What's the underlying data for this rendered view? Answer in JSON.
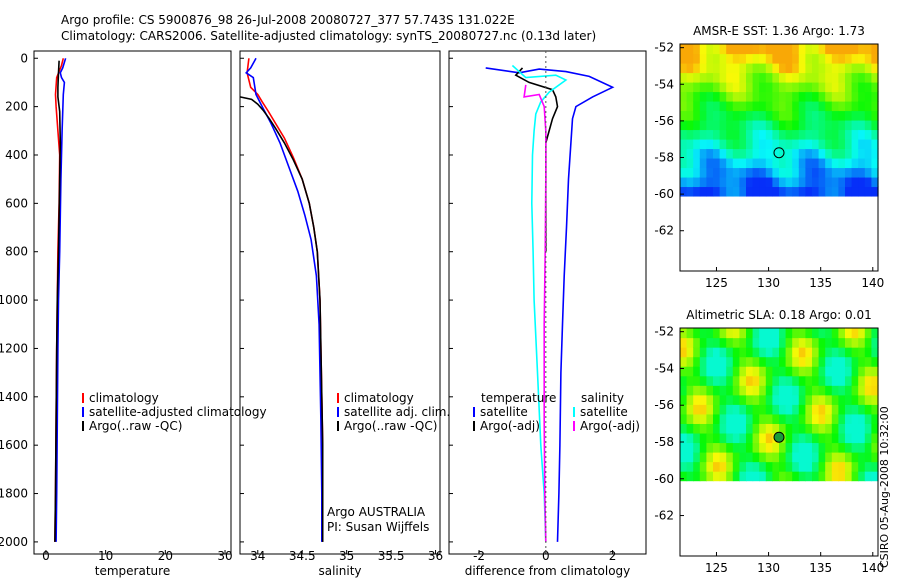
{
  "figure": {
    "title_line1": "Argo profile: CS 5900876_98 26-Jul-2008 20080727_377 57.743S 131.022E",
    "title_line2": "Climatology: CARS2006. Satellite-adjusted climatology: synTS_20080727.nc (0.13d later)",
    "watermark": "CSIRO 05-Aug-2008 10:32:00"
  },
  "colors": {
    "climatology": "#ff0000",
    "satellite": "#0000ff",
    "argo": "#000000",
    "salinity_satellite": "#00ffff",
    "salinity_argo": "#ff00ff"
  },
  "chart_data": [
    {
      "type": "line",
      "name": "temperature",
      "xlabel": "temperature",
      "ylabel": "",
      "xlim": [
        -2,
        31
      ],
      "ylim": [
        2050,
        -30
      ],
      "xticks": [
        0,
        10,
        20,
        30
      ],
      "yticks": [
        0,
        200,
        400,
        600,
        800,
        1000,
        1200,
        1400,
        1600,
        1800,
        2000
      ],
      "legend": [
        "climatology",
        "satellite-adjusted climatology",
        "Argo(..raw -QC)"
      ],
      "series": [
        {
          "name": "climatology",
          "color": "#ff0000",
          "x": [
            2.9,
            2.6,
            1.8,
            1.6,
            1.7,
            2.0,
            2.3,
            2.2,
            2.0,
            1.9,
            1.8,
            1.7,
            1.6,
            1.5
          ],
          "y": [
            0,
            30,
            80,
            150,
            200,
            300,
            400,
            600,
            800,
            1000,
            1200,
            1500,
            1800,
            2000
          ]
        },
        {
          "name": "satellite-adjusted climatology",
          "color": "#0000ff",
          "x": [
            3.3,
            2.8,
            2.4,
            2.6,
            3.1,
            2.9,
            2.7,
            2.5,
            2.3,
            2.1,
            2.0,
            1.9,
            1.8,
            1.7
          ],
          "y": [
            0,
            40,
            60,
            80,
            100,
            150,
            300,
            500,
            800,
            1000,
            1200,
            1500,
            1800,
            2000
          ]
        },
        {
          "name": "Argo(..raw -QC)",
          "color": "#000000",
          "x": [
            2.2,
            2.1,
            2.0,
            2.0,
            2.3,
            2.4,
            2.3,
            2.1,
            1.9,
            1.8,
            1.7,
            1.6,
            1.5
          ],
          "y": [
            10,
            60,
            120,
            160,
            220,
            350,
            500,
            800,
            1000,
            1200,
            1500,
            1800,
            2000
          ]
        }
      ]
    },
    {
      "type": "line",
      "name": "salinity",
      "xlabel": "salinity",
      "ylabel": "",
      "xlim": [
        33.8,
        36.05
      ],
      "ylim": [
        2050,
        -30
      ],
      "xticks": [
        34,
        34.5,
        35,
        35.5,
        36
      ],
      "xtick_labels": [
        "34",
        "34.5",
        "35",
        "35.5",
        "36"
      ],
      "legend": [
        "climatology",
        "satellite adj. clim.",
        "Argo(..raw -QC)"
      ],
      "annotations": [
        "Argo AUSTRALIA",
        "PI: Susan Wijffels"
      ],
      "series": [
        {
          "name": "climatology",
          "color": "#ff0000",
          "x": [
            33.9,
            33.88,
            33.92,
            34.0,
            34.05,
            34.12,
            34.2,
            34.3,
            34.4,
            34.5,
            34.58,
            34.63,
            34.67,
            34.7,
            34.71,
            34.72,
            34.73,
            34.73,
            34.73
          ],
          "y": [
            0,
            60,
            120,
            150,
            180,
            220,
            270,
            330,
            410,
            500,
            600,
            700,
            800,
            1000,
            1200,
            1400,
            1600,
            1800,
            2000
          ]
        },
        {
          "name": "satellite adj. clim.",
          "color": "#0000ff",
          "x": [
            33.98,
            33.92,
            33.87,
            33.95,
            33.98,
            34.05,
            34.15,
            34.25,
            34.35,
            34.45,
            34.53,
            34.6,
            34.66,
            34.69,
            34.7,
            34.71,
            34.72,
            34.72
          ],
          "y": [
            0,
            40,
            60,
            80,
            150,
            200,
            270,
            350,
            450,
            550,
            650,
            750,
            900,
            1100,
            1300,
            1500,
            1800,
            2000
          ]
        },
        {
          "name": "Argo(..raw -QC)",
          "color": "#000000",
          "x": [
            33.8,
            33.93,
            34.0,
            34.06,
            34.13,
            34.2,
            34.3,
            34.4,
            34.5,
            34.58,
            34.63,
            34.67,
            34.7,
            34.71,
            34.72,
            34.73,
            34.73,
            34.73
          ],
          "y": [
            160,
            170,
            190,
            215,
            250,
            290,
            350,
            420,
            500,
            600,
            700,
            800,
            1000,
            1200,
            1400,
            1600,
            1800,
            2000
          ]
        }
      ]
    },
    {
      "type": "line",
      "name": "difference from climatology",
      "xlabel": "difference from climatology",
      "ylabel": "",
      "xlim": [
        -2.9,
        3.0
      ],
      "ylim": [
        2050,
        -30
      ],
      "xticks": [
        -2,
        0,
        2
      ],
      "legend_temperature": {
        "title": "temperature",
        "items": [
          "satellite",
          "Argo(-adj)"
        ]
      },
      "legend_salinity": {
        "title": "salinity",
        "items": [
          "satellite",
          "Argo(-adj)"
        ]
      },
      "series": [
        {
          "name": "temperature satellite",
          "color": "#0000ff",
          "x": [
            -1.8,
            -0.8,
            -0.2,
            0.6,
            1.3,
            2.0,
            1.4,
            0.9,
            0.8,
            0.75,
            0.68,
            0.62,
            0.55,
            0.5,
            0.45,
            0.42,
            0.39,
            0.35
          ],
          "y": [
            40,
            60,
            45,
            55,
            75,
            120,
            160,
            200,
            250,
            350,
            500,
            700,
            900,
            1100,
            1300,
            1600,
            1800,
            2000
          ]
        },
        {
          "name": "temperature Argo(-adj)",
          "color": "#000000",
          "x": [
            -0.7,
            -0.9,
            -0.5,
            0.2,
            0.3,
            0.35,
            0.2,
            0.0,
            0.0,
            0.0,
            0.0
          ],
          "y": [
            40,
            70,
            100,
            130,
            160,
            200,
            250,
            350,
            500,
            700,
            800
          ]
        },
        {
          "name": "salinity satellite",
          "color": "#00ffff",
          "x": [
            -1.0,
            -0.6,
            0.3,
            0.6,
            0.1,
            -0.15,
            -0.3,
            -0.35,
            -0.4,
            -0.42,
            -0.38,
            -0.35,
            -0.25,
            -0.15,
            -0.05,
            0.0
          ],
          "y": [
            30,
            80,
            70,
            90,
            140,
            180,
            230,
            300,
            400,
            600,
            800,
            1000,
            1300,
            1600,
            1800,
            2000
          ]
        },
        {
          "name": "salinity Argo(-adj)",
          "color": "#ff00ff",
          "x": [
            -0.6,
            -0.65,
            -0.2,
            -0.05,
            0.0,
            0.0,
            -0.02,
            -0.05,
            -0.05,
            -0.03,
            0.0
          ],
          "y": [
            110,
            160,
            150,
            200,
            300,
            500,
            800,
            1100,
            1500,
            1800,
            2000
          ]
        }
      ]
    },
    {
      "type": "heatmap",
      "name": "AMSR-E SST",
      "title": "AMSR-E SST: 1.36  Argo: 1.73",
      "xlim": [
        121.5,
        140.5
      ],
      "ylim": [
        -64.2,
        -51.8
      ],
      "xticks": [
        125,
        130,
        135,
        140
      ],
      "yticks": [
        -52,
        -54,
        -56,
        -58,
        -60,
        -62
      ],
      "data_lat_range": [
        -60.1,
        -51.8
      ],
      "marker": {
        "lon": 131.0,
        "lat": -57.74
      }
    },
    {
      "type": "heatmap",
      "name": "Altimetric SLA",
      "title": "Altimetric SLA: 0.18  Argo: 0.01",
      "xlim": [
        121.5,
        140.5
      ],
      "ylim": [
        -64.2,
        -51.8
      ],
      "xticks": [
        125,
        130,
        135,
        140
      ],
      "yticks": [
        -52,
        -54,
        -56,
        -58,
        -60,
        -62
      ],
      "data_lat_range": [
        -60.1,
        -51.8
      ],
      "marker": {
        "lon": 131.0,
        "lat": -57.74
      }
    }
  ]
}
